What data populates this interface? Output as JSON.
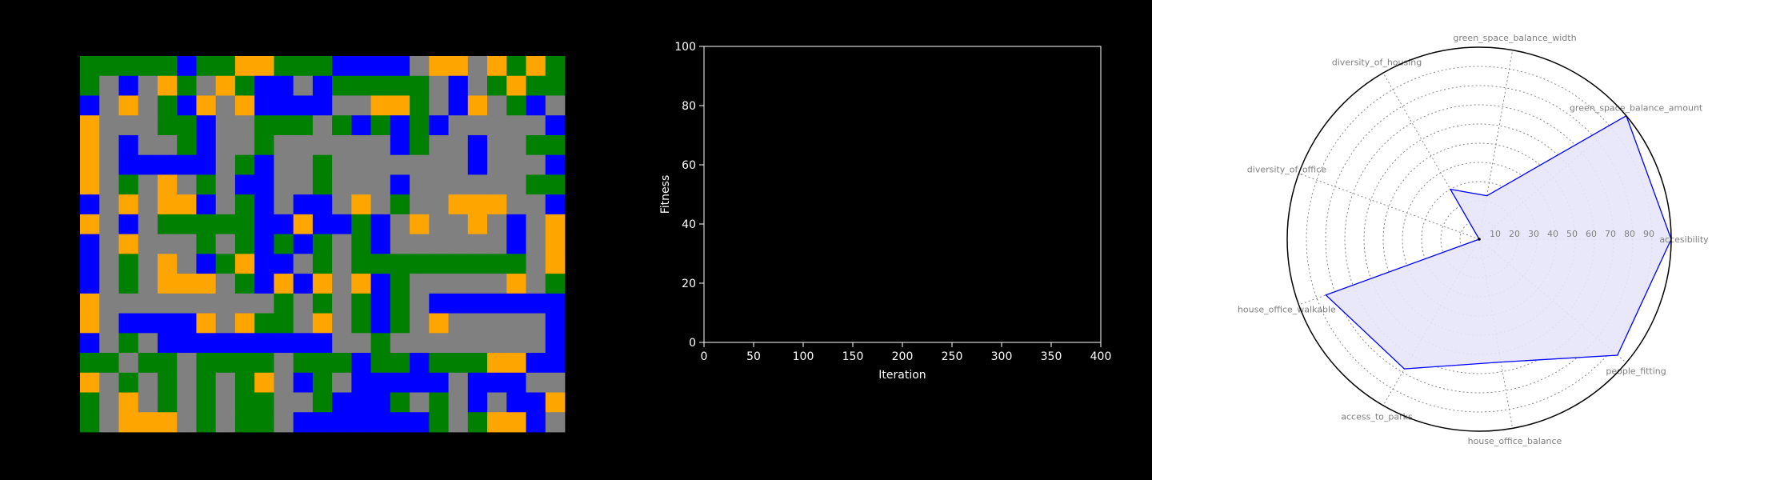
{
  "colors": {
    "road": "#808080",
    "office": "#0000ff",
    "housing": "#ffa500",
    "green": "#008000",
    "background_dark": "#000000",
    "background_light": "#ffffff",
    "radar_line": "#0000ff",
    "radar_fill": "#e6e6fa",
    "radar_label": "#808080"
  },
  "grid_map": {
    "legend": {
      "0": "road",
      "1": "office",
      "2": "housing",
      "3": "green"
    },
    "rows": [
      "3333313322333111102202323",
      "3010230231101333330103233",
      "1020312021111002230120310",
      "2000331003330313131000001",
      "2010031003000000130010033",
      "2011111031003000000010001",
      "2030203011003000100000033",
      "1020221031011020300222001",
      "2010333331121131020020102",
      "1020003031313031000000102",
      "1030201321103033333333302",
      "1030222031212021300000203",
      "2000000000303031301111111",
      "2011112023302031302000001",
      "1030111111111003000000001",
      "3303303333033313313332211",
      "2030303032013011111011100",
      "3020303033003111303010112",
      "3022203033011111113032210"
    ]
  },
  "chart_data": [
    {
      "type": "line",
      "title": "",
      "xlabel": "Iteration",
      "ylabel": "Fitness",
      "xlim": [
        0,
        400
      ],
      "ylim": [
        0,
        100
      ],
      "xticks": [
        0,
        50,
        100,
        150,
        200,
        250,
        300,
        350,
        400
      ],
      "yticks": [
        0,
        20,
        40,
        60,
        80,
        100
      ],
      "series": []
    },
    {
      "type": "radar",
      "title": "",
      "categories": [
        "accesibility",
        "green_space_balance_amount",
        "green_space_balance_width",
        "diversity_of_housing",
        "diversity_of_office",
        "house_office_walkable",
        "access_to_parks",
        "house_office_balance",
        "people_fitting"
      ],
      "values": [
        100,
        100,
        23,
        30,
        0,
        85,
        78,
        65,
        94
      ],
      "rlim": [
        0,
        100
      ],
      "rticks": [
        10,
        20,
        30,
        40,
        50,
        60,
        70,
        80,
        90
      ],
      "grid": true
    }
  ]
}
